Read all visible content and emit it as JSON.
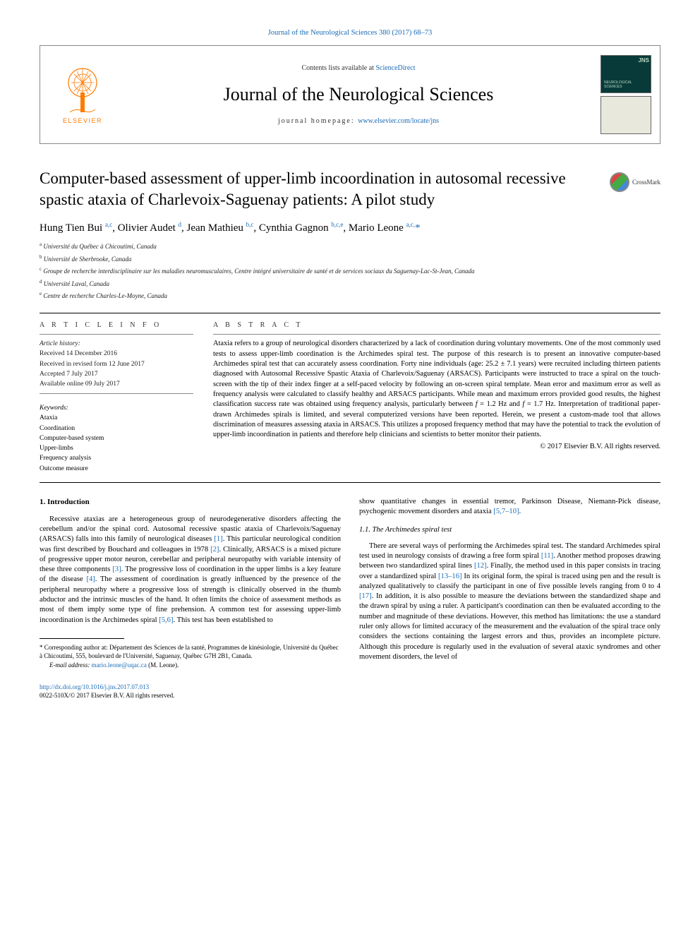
{
  "citation": "Journal of the Neurological Sciences 380 (2017) 68–73",
  "header": {
    "contents_prefix": "Contents lists available at ",
    "contents_link": "ScienceDirect",
    "journal": "Journal of the Neurological Sciences",
    "homepage_prefix": "journal homepage: ",
    "homepage_link": "www.elsevier.com/locate/jns",
    "elsevier": "ELSEVIER",
    "cover_jns": "JNS",
    "cover_sub": "NEUROLOGICAL SCIENCES"
  },
  "crossmark": "CrossMark",
  "title": "Computer-based assessment of upper-limb incoordination in autosomal recessive spastic ataxia of Charlevoix-Saguenay patients: A pilot study",
  "authors_html": "Hung Tien Bui <sup>a,c</sup>, Olivier Audet <sup>d</sup>, Jean Mathieu <sup>b,c</sup>, Cynthia Gagnon <sup>b,c,e</sup>, Mario Leone <sup>a,c,</sup>",
  "corr_marker": "*",
  "affiliations": [
    {
      "sup": "a",
      "text": "Université du Québec à Chicoutimi, Canada"
    },
    {
      "sup": "b",
      "text": "Université de Sherbrooke, Canada"
    },
    {
      "sup": "c",
      "text": "Groupe de recherche interdisciplinaire sur les maladies neuromusculaires, Centre intégré universitaire de santé et de services sociaux du Saguenay-Lac-St-Jean, Canada"
    },
    {
      "sup": "d",
      "text": "Université Laval, Canada"
    },
    {
      "sup": "e",
      "text": "Centre de recherche Charles-Le-Moyne, Canada"
    }
  ],
  "article_info": {
    "label": "A R T I C L E   I N F O",
    "history_label": "Article history:",
    "received": "Received 14 December 2016",
    "revised": "Received in revised form 12 June 2017",
    "accepted": "Accepted 7 July 2017",
    "online": "Available online 09 July 2017",
    "keywords_label": "Keywords:",
    "keywords": [
      "Ataxia",
      "Coordination",
      "Computer-based system",
      "Upper-limbs",
      "Frequency analysis",
      "Outcome measure"
    ]
  },
  "abstract": {
    "label": "A B S T R A C T",
    "text": "Ataxia refers to a group of neurological disorders characterized by a lack of coordination during voluntary movements. One of the most commonly used tests to assess upper-limb coordination is the Archimedes spiral test. The purpose of this research is to present an innovative computer-based Archimedes spiral test that can accurately assess coordination. Forty nine individuals (age: 25.2 ± 7.1 years) were recruited including thirteen patients diagnosed with Autosomal Recessive Spastic Ataxia of Charlevoix/Saguenay (ARSACS). Participants were instructed to trace a spiral on the touch-screen with the tip of their index finger at a self-paced velocity by following an on-screen spiral template. Mean error and maximum error as well as frequency analysis were calculated to classify healthy and ARSACS participants. While mean and maximum errors provided good results, the highest classification success rate was obtained using frequency analysis, particularly between f = 1.2 Hz and f = 1.7 Hz. Interpretation of traditional paper-drawn Archimedes spirals is limited, and several computerized versions have been reported. Herein, we present a custom-made tool that allows discrimination of measures assessing ataxia in ARSACS. This utilizes a proposed frequency method that may have the potential to track the evolution of upper-limb incoordination in patients and therefore help clinicians and scientists to better monitor their patients.",
    "copyright": "© 2017 Elsevier B.V. All rights reserved."
  },
  "body": {
    "intro_heading": "1. Introduction",
    "intro_p1a": "Recessive ataxias are a heterogeneous group of neurodegenerative disorders affecting the cerebellum and/or the spinal cord. Autosomal recessive spastic ataxia of Charlevoix/Saguenay (ARSACS) falls into this family of neurological diseases ",
    "ref1": "[1]",
    "intro_p1b": ". This particular neurological condition was first described by Bouchard and colleagues in 1978 ",
    "ref2": "[2]",
    "intro_p1c": ". Clinically, ARSACS is a mixed picture of progressive upper motor neuron, cerebellar and peripheral neuropathy with variable intensity of these three components ",
    "ref3": "[3]",
    "intro_p1d": ". The progressive loss of coordination in the upper limbs is a key feature of the disease ",
    "ref4": "[4]",
    "intro_p1e": ". The assessment of coordination is greatly influenced by the presence of the peripheral neuropathy where a progressive loss of strength is clinically observed in the thumb abductor and the intrinsic muscles of the hand. It often limits the choice of assessment methods as most of them imply some type of fine prehension. A common test for assessing upper-limb incoordination is the Archimedes spiral ",
    "ref56": "[5,6]",
    "intro_p1f": ". This test has been established to",
    "col2_p1a": "show quantitative changes in essential tremor, Parkinson Disease, Niemann-Pick disease, psychogenic movement disorders and ataxia ",
    "ref5710": "[5,7–10]",
    "col2_p1b": ".",
    "sub_heading": "1.1. The Archimedes spiral test",
    "sub_p1a": "There are several ways of performing the Archimedes spiral test. The standard Archimedes spiral test used in neurology consists of drawing a free form spiral ",
    "ref11": "[11]",
    "sub_p1b": ". Another method proposes drawing between two standardized spiral lines ",
    "ref12": "[12]",
    "sub_p1c": ". Finally, the method used in this paper consists in tracing over a standardized spiral ",
    "ref1316": "[13–16]",
    "sub_p1d": " In its original form, the spiral is traced using pen and the result is analyzed qualitatively to classify the participant in one of five possible levels ranging from 0 to 4 ",
    "ref17": "[17]",
    "sub_p1e": ". In addition, it is also possible to measure the deviations between the standardized shape and the drawn spiral by using a ruler. A participant's coordination can then be evaluated according to the number and magnitude of these deviations. However, this method has limitations: the use a standard ruler only allows for limited accuracy of the measurement and the evaluation of the spiral trace only considers the sections containing the largest errors and thus, provides an incomplete picture. Although this procedure is regularly used in the evaluation of several ataxic syndromes and other movement disorders, the level of"
  },
  "footnote": {
    "corr_label": "* Corresponding author at: Département des Sciences de la santé, Programmes de kinésiologie, Université du Québec à Chicoutimi, 555, boulevard de l'Université, Saguenay, Québec G7H 2B1, Canada.",
    "email_label": "E-mail address:",
    "email": "mario.leone@uqac.ca",
    "email_suffix": " (M. Leone)."
  },
  "bottom": {
    "doi": "http://dx.doi.org/10.1016/j.jns.2017.07.013",
    "issn": "0022-510X/© 2017 Elsevier B.V. All rights reserved."
  },
  "colors": {
    "link": "#1a6bb5",
    "elsevier_orange": "#ff7a00",
    "cover_bg": "#083a3a"
  }
}
